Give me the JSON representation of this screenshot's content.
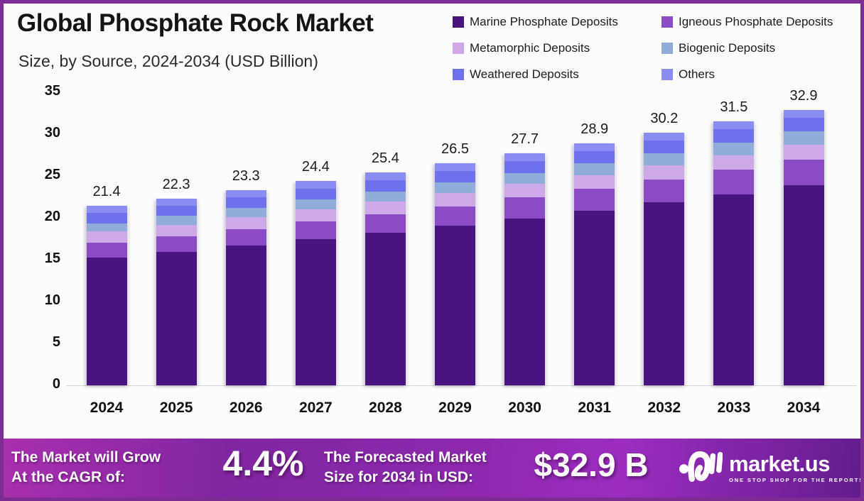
{
  "header": {
    "title": "Global Phosphate Rock Market",
    "subtitle": "Size, by Source, 2024-2034 (USD Billion)"
  },
  "chart_data": {
    "type": "bar",
    "stacked": true,
    "title": "Global Phosphate Rock Market",
    "subtitle": "Size, by Source, 2024-2034 (USD Billion)",
    "unit": "USD Billion",
    "categories": [
      "2024",
      "2025",
      "2026",
      "2027",
      "2028",
      "2029",
      "2030",
      "2031",
      "2032",
      "2033",
      "2034"
    ],
    "totals": [
      21.4,
      22.3,
      23.3,
      24.4,
      25.4,
      26.5,
      27.7,
      28.9,
      30.2,
      31.5,
      32.9
    ],
    "series": [
      {
        "name": "Marine Phosphate Deposits",
        "color": "#481580",
        "values": [
          15.23,
          15.9,
          16.65,
          17.47,
          18.22,
          19.05,
          19.94,
          20.85,
          21.83,
          22.81,
          23.87
        ]
      },
      {
        "name": "Igneous Phosphate Deposits",
        "color": "#8a4bc4",
        "values": [
          1.79,
          1.89,
          1.99,
          2.11,
          2.22,
          2.34,
          2.48,
          2.61,
          2.76,
          2.91,
          3.07
        ]
      },
      {
        "name": "Metamorphic Deposits",
        "color": "#cda9e8",
        "values": [
          1.34,
          1.38,
          1.42,
          1.47,
          1.51,
          1.55,
          1.6,
          1.64,
          1.69,
          1.74,
          1.79
        ]
      },
      {
        "name": "Biogenic Deposits",
        "color": "#8fadd8",
        "values": [
          1.0,
          1.05,
          1.1,
          1.16,
          1.21,
          1.27,
          1.33,
          1.39,
          1.46,
          1.53,
          1.61
        ]
      },
      {
        "name": "Weathered Deposits",
        "color": "#6f70ec",
        "values": [
          1.19,
          1.22,
          1.26,
          1.31,
          1.34,
          1.39,
          1.43,
          1.47,
          1.52,
          1.56,
          1.61
        ]
      },
      {
        "name": "Others",
        "color": "#8b8df2",
        "values": [
          0.85,
          0.86,
          0.87,
          0.89,
          0.9,
          0.91,
          0.91,
          0.92,
          0.93,
          0.94,
          0.94
        ]
      }
    ],
    "yticks": [
      0,
      5,
      10,
      15,
      20,
      25,
      30,
      35
    ],
    "ylim": [
      0,
      35
    ],
    "grid": false,
    "legend_position": "top-right"
  },
  "footer": {
    "cagr_line1": "The Market will Grow",
    "cagr_line2": "At the CAGR of:",
    "cagr_value": "4.4%",
    "forecast_line1": "The Forecasted Market",
    "forecast_line2": "Size for 2034 in USD:",
    "forecast_value": "$32.9 B",
    "brand": "market.us",
    "brand_tagline": "ONE STOP SHOP FOR THE REPORTS"
  },
  "colors": {
    "frame_border": "#7b2d93",
    "background": "#fdfcfd",
    "footer_gradient_start": "#a92fae",
    "footer_gradient_end": "#641c8e",
    "text_dark": "#141414"
  }
}
